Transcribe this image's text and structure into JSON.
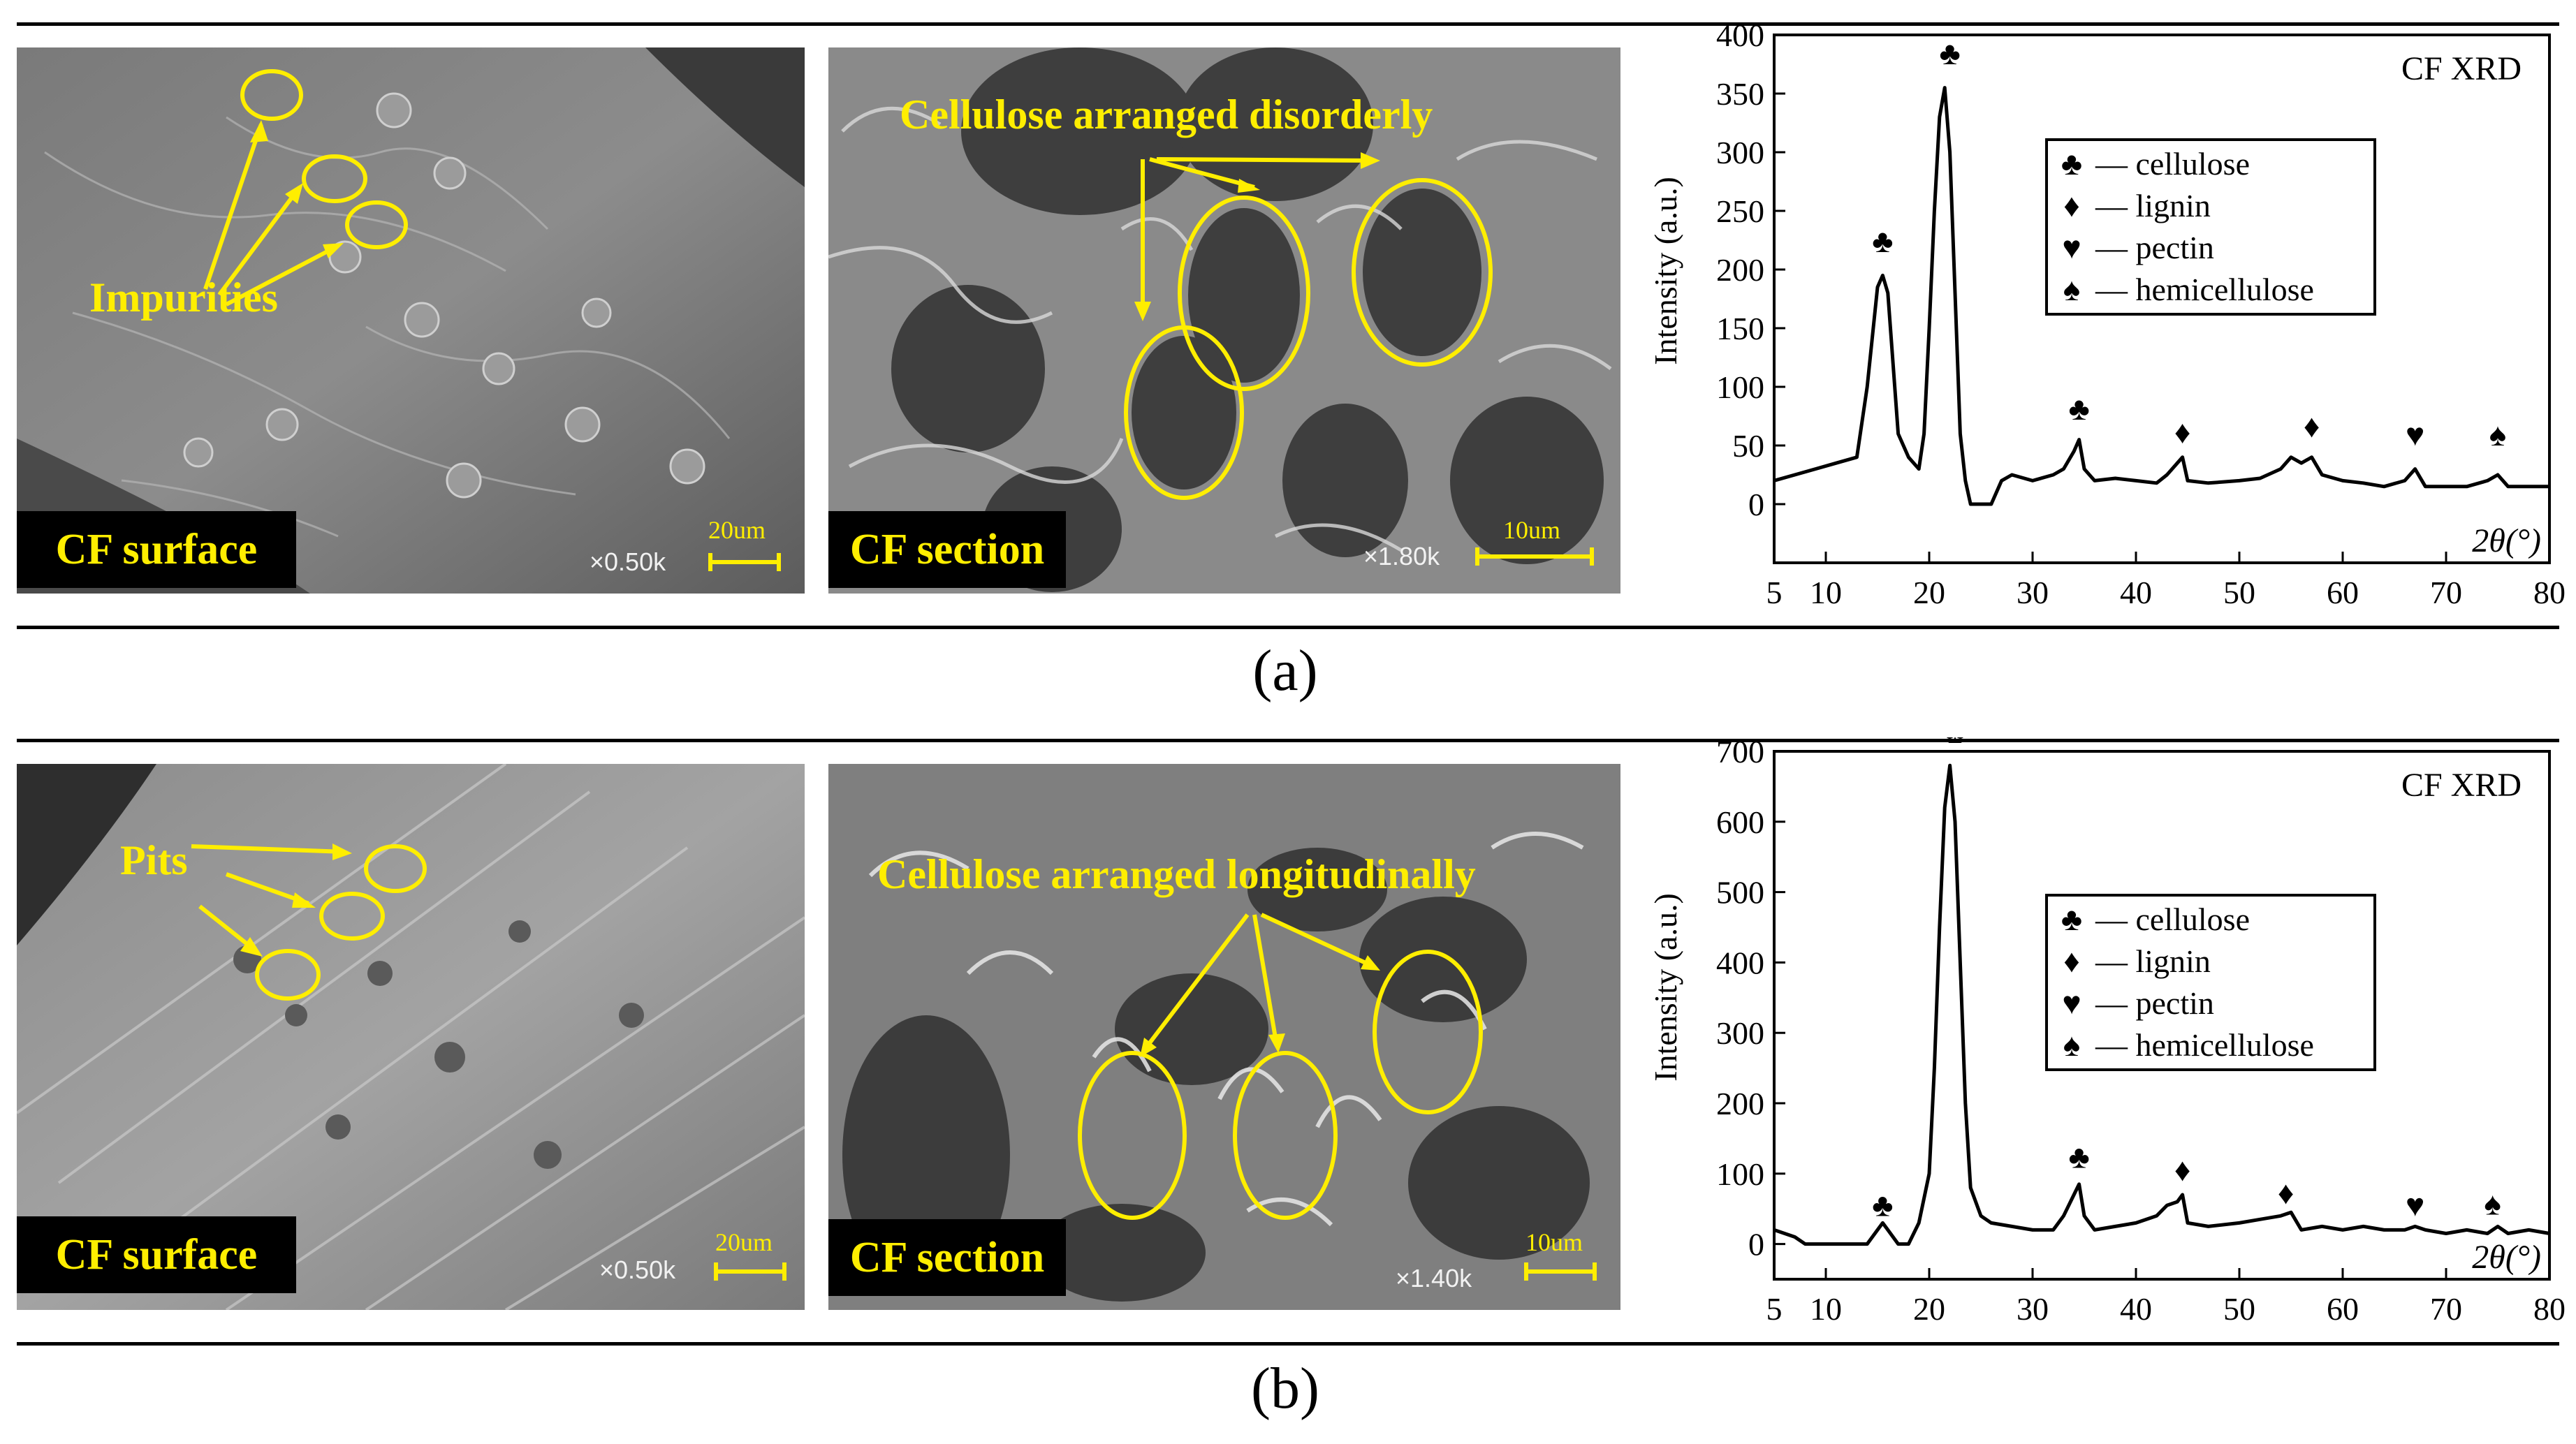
{
  "panels": [
    {
      "caption": "(a)",
      "surface": {
        "label": "CF surface",
        "magnification": "×0.50k",
        "scale": "20um",
        "annotation": "Impurities"
      },
      "section": {
        "label": "CF section",
        "magnification": "×1.80k",
        "scale": "10um",
        "annotation": "Cellulose arranged disorderly"
      }
    },
    {
      "caption": "(b)",
      "surface": {
        "label": "CF surface",
        "magnification": "×0.50k",
        "scale": "20um",
        "annotation": "Pits"
      },
      "section": {
        "label": "CF section",
        "magnification": "×1.40k",
        "scale": "10um",
        "annotation": "Cellulose arranged longitudinally"
      }
    }
  ],
  "chart_data": [
    {
      "type": "line",
      "title": "CF XRD",
      "ylabel": "Intensity (a.u.)",
      "xlabel": "2θ(°)",
      "xlim": [
        5,
        80
      ],
      "ylim": [
        -50,
        400
      ],
      "xticks": [
        5,
        10,
        20,
        30,
        40,
        50,
        60,
        70,
        80
      ],
      "yticks": [
        0,
        50,
        100,
        150,
        200,
        250,
        300,
        350,
        400
      ],
      "legend_position": "top-right",
      "legend": [
        {
          "symbol": "♣",
          "text": "— cellulose"
        },
        {
          "symbol": "♦",
          "text": "— lignin"
        },
        {
          "symbol": "♥",
          "text": "— pectin"
        },
        {
          "symbol": "♠",
          "text": "— hemicellulose"
        }
      ],
      "series": [
        {
          "x": [
            5,
            7,
            9,
            11,
            13,
            14,
            15,
            15.5,
            16,
            16.5,
            17,
            18,
            19,
            19.5,
            20,
            20.5,
            21,
            21.5,
            22,
            22.5,
            23,
            23.5,
            24,
            25,
            26,
            27,
            28,
            30,
            32,
            33,
            34,
            34.5,
            35,
            36,
            38,
            40,
            42,
            43,
            44,
            44.5,
            45,
            47,
            50,
            52,
            54,
            55,
            56,
            57,
            58,
            60,
            62,
            64,
            66,
            67,
            68,
            70,
            72,
            74,
            75,
            76,
            78,
            80
          ],
          "y": [
            20,
            25,
            30,
            35,
            40,
            100,
            185,
            195,
            180,
            120,
            60,
            40,
            30,
            60,
            150,
            250,
            330,
            355,
            300,
            180,
            60,
            20,
            0,
            0,
            0,
            20,
            25,
            20,
            25,
            30,
            45,
            55,
            30,
            20,
            22,
            20,
            18,
            25,
            35,
            40,
            20,
            18,
            20,
            22,
            30,
            40,
            35,
            40,
            25,
            20,
            18,
            15,
            20,
            30,
            15,
            15,
            15,
            20,
            25,
            15,
            15,
            15
          ]
        }
      ],
      "markers": [
        {
          "symbol": "♣",
          "x": 15.5,
          "y": 215
        },
        {
          "symbol": "♣",
          "x": 22,
          "y": 375
        },
        {
          "symbol": "♣",
          "x": 34.5,
          "y": 72
        },
        {
          "symbol": "♦",
          "x": 44.5,
          "y": 52
        },
        {
          "symbol": "♦",
          "x": 57,
          "y": 57
        },
        {
          "symbol": "♥",
          "x": 67,
          "y": 50
        },
        {
          "symbol": "♠",
          "x": 75,
          "y": 50
        }
      ]
    },
    {
      "type": "line",
      "title": "CF XRD",
      "ylabel": "Intensity (a.u.)",
      "xlabel": "2θ(°)",
      "xlim": [
        5,
        80
      ],
      "ylim": [
        -50,
        700
      ],
      "xticks": [
        5,
        10,
        20,
        30,
        40,
        50,
        60,
        70,
        80
      ],
      "yticks": [
        0,
        100,
        200,
        300,
        400,
        500,
        600,
        700
      ],
      "legend_position": "top-right",
      "legend": [
        {
          "symbol": "♣",
          "text": "— cellulose"
        },
        {
          "symbol": "♦",
          "text": "— lignin"
        },
        {
          "symbol": "♥",
          "text": "— pectin"
        },
        {
          "symbol": "♠",
          "text": "— hemicellulose"
        }
      ],
      "series": [
        {
          "x": [
            5,
            7,
            8,
            10,
            12,
            14,
            15,
            15.5,
            16,
            17,
            18,
            19,
            20,
            20.5,
            21,
            21.5,
            22,
            22.5,
            23,
            23.5,
            24,
            25,
            26,
            28,
            30,
            32,
            33,
            34,
            34.5,
            35,
            36,
            38,
            40,
            42,
            43,
            44,
            44.5,
            45,
            47,
            50,
            52,
            54,
            55,
            56,
            58,
            60,
            62,
            64,
            66,
            67,
            68,
            70,
            72,
            74,
            75,
            76,
            78,
            80
          ],
          "y": [
            20,
            10,
            0,
            0,
            0,
            0,
            20,
            30,
            20,
            0,
            0,
            30,
            100,
            250,
            450,
            620,
            680,
            600,
            400,
            200,
            80,
            40,
            30,
            25,
            20,
            20,
            40,
            70,
            85,
            40,
            20,
            25,
            30,
            40,
            55,
            60,
            70,
            30,
            25,
            30,
            35,
            40,
            45,
            20,
            25,
            20,
            25,
            20,
            20,
            25,
            20,
            15,
            20,
            15,
            25,
            15,
            20,
            15
          ]
        }
      ],
      "markers": [
        {
          "symbol": "♣",
          "x": 15.5,
          "y": 40
        },
        {
          "symbol": "♣",
          "x": 22.5,
          "y": 712
        },
        {
          "symbol": "♣",
          "x": 34.5,
          "y": 108
        },
        {
          "symbol": "♦",
          "x": 44.5,
          "y": 90
        },
        {
          "symbol": "♦",
          "x": 54.5,
          "y": 57
        },
        {
          "symbol": "♥",
          "x": 67,
          "y": 40
        },
        {
          "symbol": "♠",
          "x": 74.5,
          "y": 42
        }
      ]
    }
  ]
}
